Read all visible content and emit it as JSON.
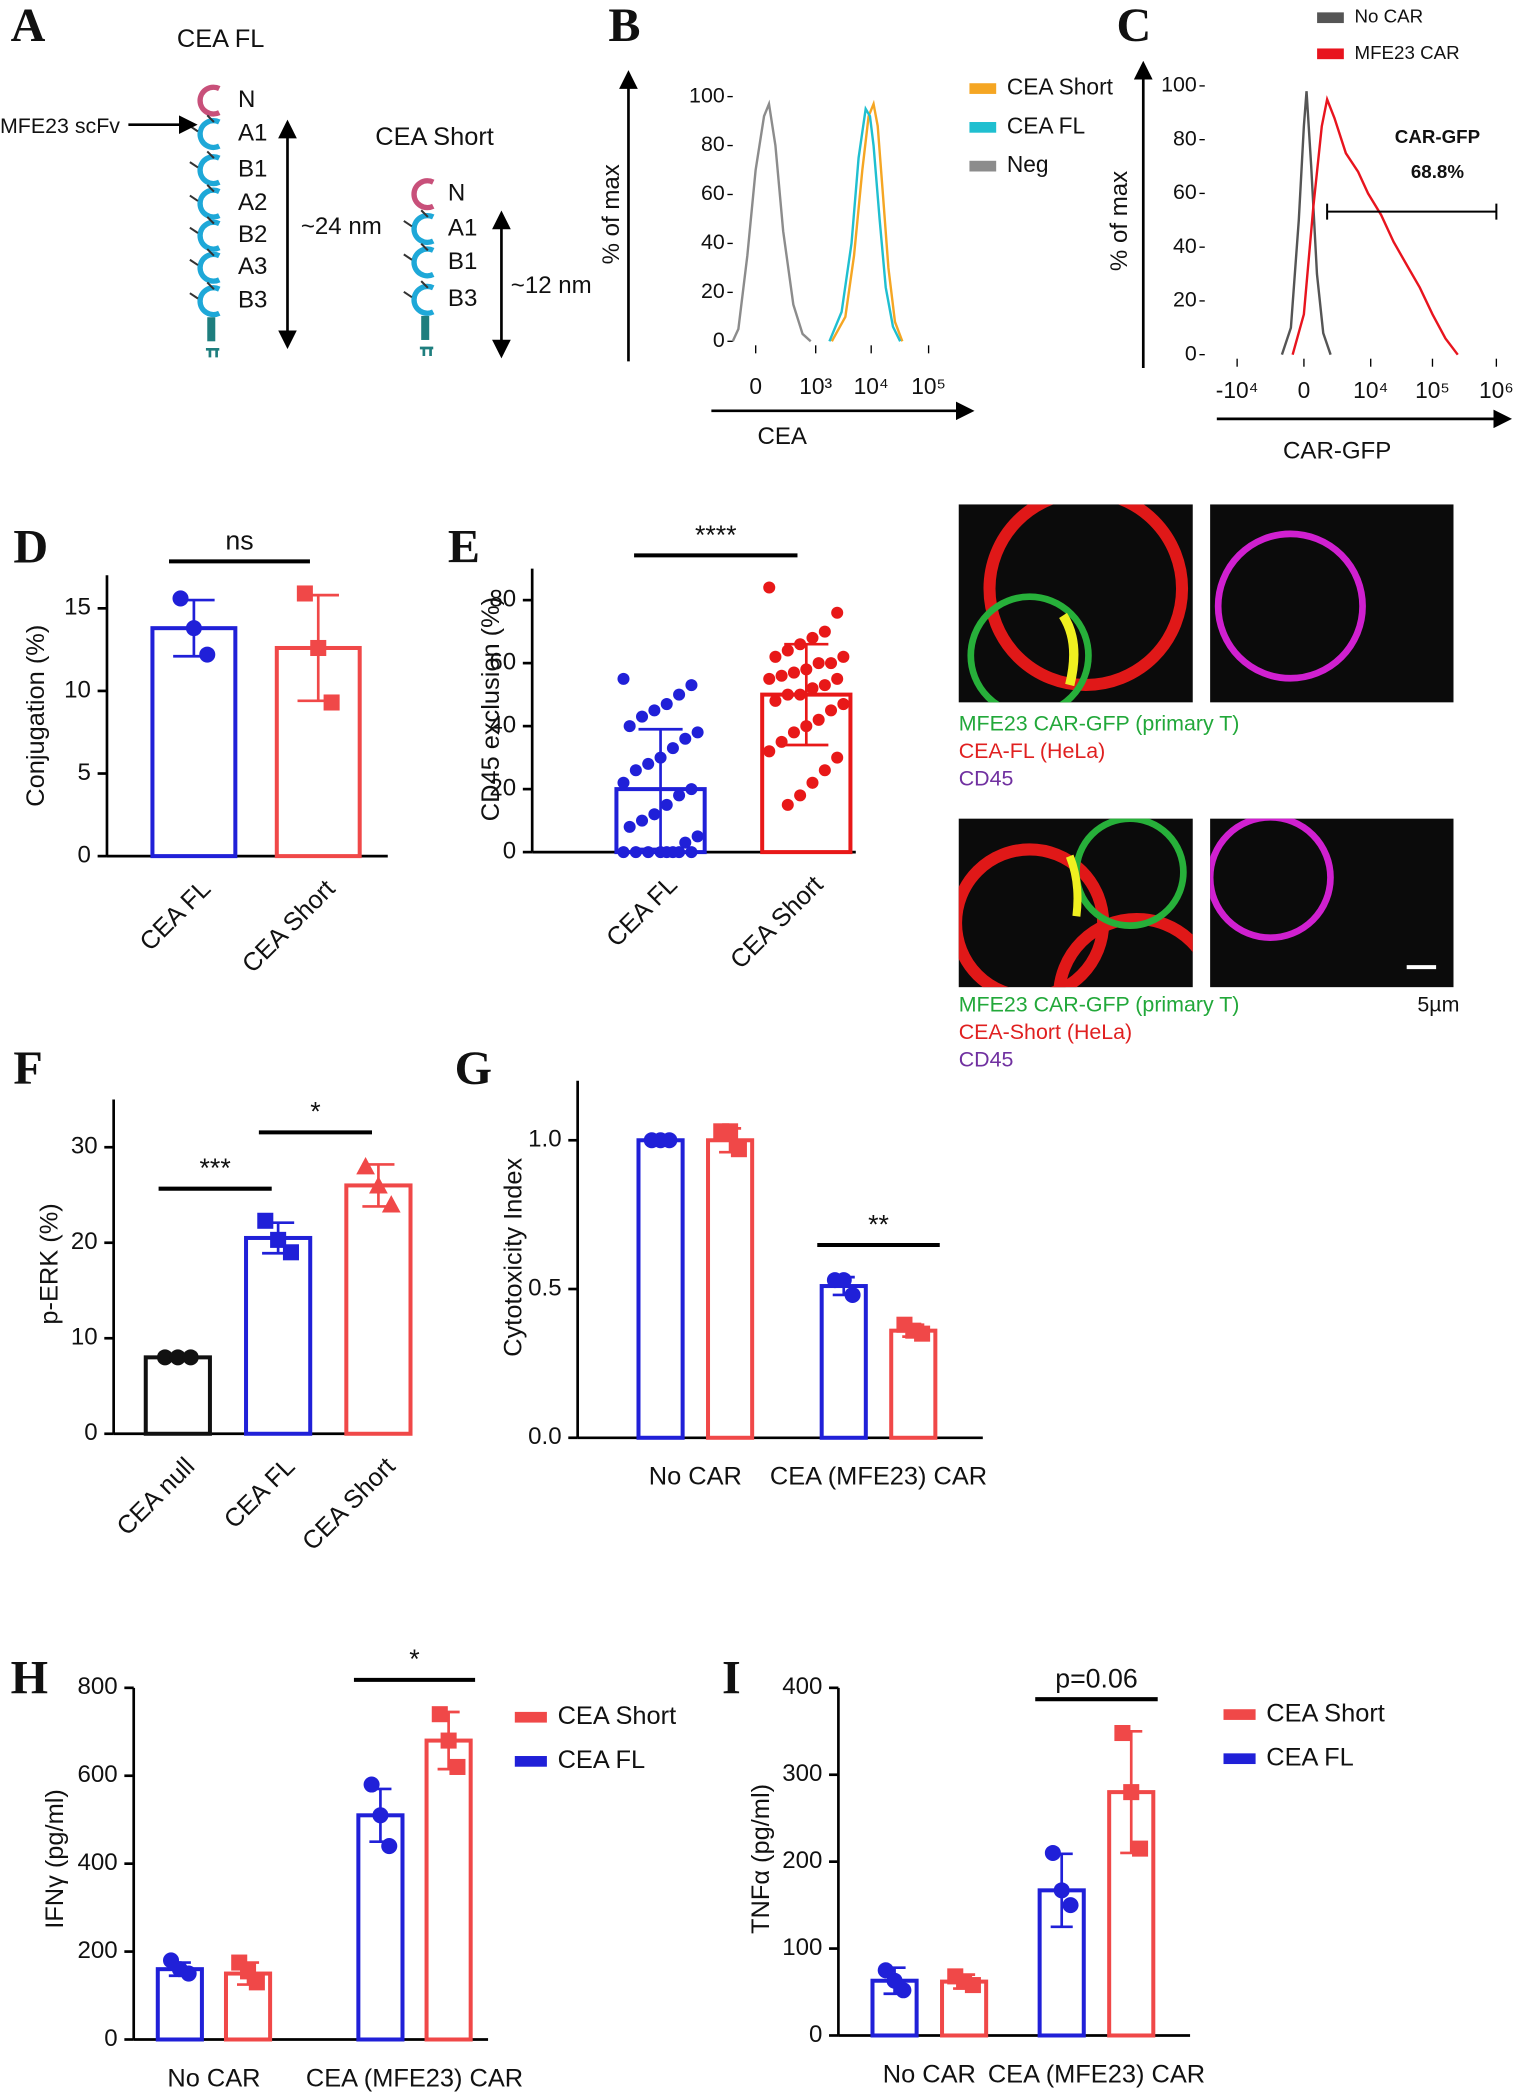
{
  "diagram": {
    "panel": "A",
    "full": {
      "title": "CEA FL",
      "binder": "MFE23 scFv",
      "domains": [
        "N",
        "A1",
        "B1",
        "A2",
        "B2",
        "A3",
        "B3"
      ],
      "length": "~24 nm"
    },
    "short": {
      "title": "CEA Short",
      "domains": [
        "N",
        "A1",
        "B1",
        "B3"
      ],
      "length": "~12 nm"
    }
  },
  "microscopy": {
    "scale_bar": "5µm",
    "rows": [
      {
        "captions": [
          "MFE23 CAR-GFP (primary T)",
          "CEA-FL (HeLa)",
          "CD45"
        ]
      },
      {
        "captions": [
          "MFE23 CAR-GFP (primary T)",
          "CEA-Short (HeLa)",
          "CD45"
        ]
      }
    ]
  },
  "chart_data": [
    {
      "type": "line",
      "panel": "B",
      "xlabel": "CEA",
      "ylabel": "% of max",
      "xscale": "symlog",
      "xlim": [
        -150,
        300000
      ],
      "ylim": [
        0,
        100
      ],
      "xticks": [
        0,
        {
          "value": 1000,
          "label": "10³"
        },
        {
          "value": 10000,
          "label": "10⁴"
        },
        {
          "value": 100000,
          "label": "10⁵"
        }
      ],
      "yticks": [
        0,
        20,
        40,
        60,
        80,
        100
      ],
      "series": [
        {
          "name": "CEA Short",
          "color": "#f5a623",
          "x": [
            2000,
            3500,
            5000,
            7000,
            9000,
            11000,
            13000,
            16000,
            20000,
            26000,
            35000
          ],
          "values": [
            0,
            10,
            35,
            70,
            92,
            97,
            88,
            60,
            30,
            8,
            0
          ]
        },
        {
          "name": "CEA FL",
          "color": "#1fbfd0",
          "x": [
            1800,
            3000,
            4500,
            6000,
            8000,
            9500,
            11000,
            14000,
            18000,
            24000,
            32000
          ],
          "values": [
            0,
            12,
            40,
            75,
            95,
            92,
            80,
            50,
            22,
            6,
            0
          ]
        },
        {
          "name": "Neg",
          "color": "#8c8c8c",
          "x": [
            -150,
            -100,
            -40,
            0,
            40,
            70,
            120,
            200,
            350,
            550,
            800
          ],
          "values": [
            0,
            5,
            35,
            70,
            92,
            97,
            80,
            45,
            15,
            3,
            0
          ]
        }
      ]
    },
    {
      "type": "line",
      "panel": "C",
      "xlabel": "CAR-GFP",
      "ylabel": "% of max",
      "xscale": "symlog",
      "xlim": [
        -28000,
        1330000
      ],
      "ylim": [
        0,
        100
      ],
      "xticks": [
        {
          "value": -10000,
          "label": "-10⁴"
        },
        0,
        {
          "value": 10000,
          "label": "10⁴"
        },
        {
          "value": 100000,
          "label": "10⁵"
        },
        {
          "value": 1000000,
          "label": "10⁶"
        }
      ],
      "yticks": [
        0,
        20,
        40,
        60,
        80,
        100
      ],
      "gate": {
        "name": "CAR-GFP",
        "label": "68.8%",
        "x": [
          1300,
          1000000
        ]
      },
      "series": [
        {
          "name": "No CAR",
          "color": "#555555",
          "x": [
            -1200,
            -600,
            -200,
            0,
            100,
            300,
            600,
            1000,
            1600
          ],
          "values": [
            0,
            10,
            50,
            85,
            98,
            70,
            30,
            8,
            0
          ]
        },
        {
          "name": "MFE23 CAR",
          "color": "#e8141e",
          "x": [
            -500,
            0,
            400,
            900,
            1300,
            2000,
            3500,
            6000,
            9000,
            15000,
            24000,
            40000,
            63000,
            100000,
            160000,
            250000
          ],
          "values": [
            0,
            15,
            55,
            85,
            95,
            88,
            75,
            68,
            60,
            52,
            42,
            33,
            25,
            15,
            6,
            0
          ]
        }
      ]
    },
    {
      "type": "bar",
      "panel": "D",
      "ylabel": "Conjugation (%)",
      "ylim": [
        0,
        17
      ],
      "yticks": [
        0,
        5,
        10,
        15
      ],
      "categories": [
        "CEA FL",
        "CEA Short"
      ],
      "values": [
        13.8,
        12.6
      ],
      "errors": [
        1.7,
        3.2
      ],
      "colors": [
        "#2020d8",
        "#f04848"
      ],
      "markers": [
        "circle",
        "square"
      ],
      "points": [
        [
          15.6,
          13.8,
          12.2
        ],
        [
          15.9,
          12.6,
          9.3
        ]
      ],
      "significance": [
        "ns"
      ]
    },
    {
      "type": "bar",
      "panel": "E",
      "ylabel": "CD45 exclusion (%)",
      "ylim": [
        0,
        90
      ],
      "yticks": [
        0,
        20,
        40,
        60,
        80
      ],
      "categories": [
        "CEA FL",
        "CEA Short"
      ],
      "values": [
        20,
        50
      ],
      "errors": [
        19,
        16
      ],
      "colors": [
        "#2020d8",
        "#e81818"
      ],
      "markers": [
        "circle",
        "circle"
      ],
      "points": [
        [
          55,
          53,
          50,
          47,
          45,
          43,
          40,
          38,
          36,
          33,
          30,
          28,
          26,
          22,
          20,
          18,
          15,
          12,
          10,
          8,
          5,
          3,
          0,
          0,
          0,
          0,
          0,
          0,
          0,
          0
        ],
        [
          84,
          76,
          70,
          68,
          66,
          64,
          62,
          62,
          60,
          60,
          58,
          57,
          56,
          55,
          55,
          53,
          52,
          50,
          50,
          48,
          47,
          45,
          42,
          40,
          38,
          35,
          32,
          30,
          26,
          22,
          18,
          15
        ]
      ],
      "significance": [
        "****"
      ]
    },
    {
      "type": "bar",
      "panel": "F",
      "ylabel": "p-ERK (%)",
      "ylim": [
        0,
        35
      ],
      "yticks": [
        0,
        10,
        20,
        30
      ],
      "categories": [
        "CEA null",
        "CEA FL",
        "CEA Short"
      ],
      "values": [
        8,
        20.5,
        26
      ],
      "errors": [
        0.2,
        1.6,
        2.2
      ],
      "colors": [
        "#111111",
        "#2020d8",
        "#f04848"
      ],
      "markers": [
        "circle",
        "square",
        "triangle"
      ],
      "points": [
        [
          8,
          8,
          8
        ],
        [
          22.3,
          20.3,
          19
        ],
        [
          28,
          26,
          24
        ]
      ],
      "significance": [
        "***",
        "*"
      ]
    },
    {
      "type": "bar",
      "panel": "G",
      "ylabel": "Cytotoxicity Index",
      "ylim": [
        0,
        1.2
      ],
      "yticks": [
        {
          "value": 0,
          "label": "0.0"
        },
        0.5,
        {
          "value": 1,
          "label": "1.0"
        }
      ],
      "legend": false,
      "categories": [
        "No CAR",
        "CEA (MFE23) CAR"
      ],
      "significance": [
        null,
        "**"
      ],
      "series": [
        {
          "name": "CEA FL",
          "color": "#2020d8",
          "marker": "circle",
          "values": [
            1.0,
            0.51
          ],
          "errors": [
            0.01,
            0.03
          ],
          "points": [
            [
              1,
              1,
              1
            ],
            [
              0.53,
              0.53,
              0.48
            ]
          ]
        },
        {
          "name": "CEA Short",
          "color": "#f04848",
          "marker": "square",
          "values": [
            1.0,
            0.36
          ],
          "errors": [
            0.04,
            0.02
          ],
          "points": [
            [
              1.03,
              1.03,
              0.97
            ],
            [
              0.38,
              0.36,
              0.35
            ]
          ]
        }
      ]
    },
    {
      "type": "bar",
      "panel": "H",
      "ylabel": "IFNγ (pg/ml)",
      "ylim": [
        0,
        800
      ],
      "yticks": [
        0,
        200,
        400,
        600,
        800
      ],
      "legend": true,
      "categories": [
        "No CAR",
        "CEA (MFE23) CAR"
      ],
      "significance": [
        null,
        "*"
      ],
      "series": [
        {
          "name": "CEA FL",
          "color": "#2020d8",
          "marker": "circle",
          "values": [
            160,
            510
          ],
          "errors": [
            15,
            60
          ],
          "points": [
            [
              180,
              160,
              150
            ],
            [
              580,
              510,
              440
            ]
          ]
        },
        {
          "name": "CEA Short",
          "color": "#f04848",
          "marker": "square",
          "values": [
            150,
            680
          ],
          "errors": [
            25,
            65
          ],
          "points": [
            [
              175,
              155,
              130
            ],
            [
              740,
              680,
              620
            ]
          ]
        }
      ]
    },
    {
      "type": "bar",
      "panel": "I",
      "ylabel": "TNFα (pg/ml)",
      "ylim": [
        0,
        400
      ],
      "yticks": [
        0,
        100,
        200,
        300,
        400
      ],
      "legend": true,
      "categories": [
        "No CAR",
        "CEA (MFE23) CAR"
      ],
      "significance": [
        null,
        "p=0.06"
      ],
      "series": [
        {
          "name": "CEA FL",
          "color": "#2020d8",
          "marker": "circle",
          "values": [
            63,
            167
          ],
          "errors": [
            15,
            42
          ],
          "points": [
            [
              75,
              63,
              52
            ],
            [
              210,
              167,
              150
            ]
          ]
        },
        {
          "name": "CEA Short",
          "color": "#f04848",
          "marker": "square",
          "values": [
            62,
            280
          ],
          "errors": [
            8,
            70
          ],
          "points": [
            [
              68,
              62,
              58
            ],
            [
              348,
              280,
              215
            ]
          ]
        }
      ]
    }
  ]
}
